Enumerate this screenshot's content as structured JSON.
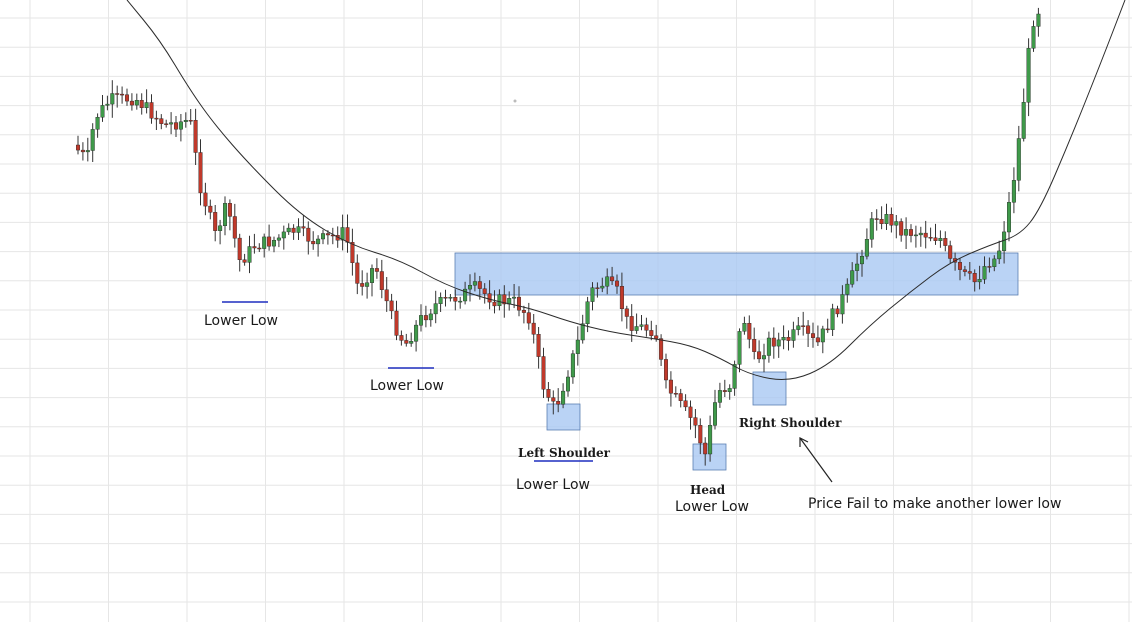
{
  "chart_data": {
    "type": "candlestick",
    "pattern": "inverse head and shoulders",
    "colors": {
      "up": "#3f9a4a",
      "down": "#c0392b",
      "wick": "#333333",
      "moving_average": "#2b2b2b",
      "zone_fill": "#a9c8f2",
      "zone_border": "#5b7fb3",
      "underline": "#1f2fbf",
      "grid": "#e6e6e6",
      "mark": "#bbbbbb"
    },
    "grid": true,
    "annotations": {
      "lower_low_1": "Lower Low",
      "lower_low_2": "Lower Low",
      "left_shoulder": "Left Shoulder",
      "lower_low_3": "Lower Low",
      "head": "Head",
      "lower_low_4": "Lower Low",
      "right_shoulder": "Right Shoulder",
      "note": "Price Fail to make another lower low"
    }
  }
}
